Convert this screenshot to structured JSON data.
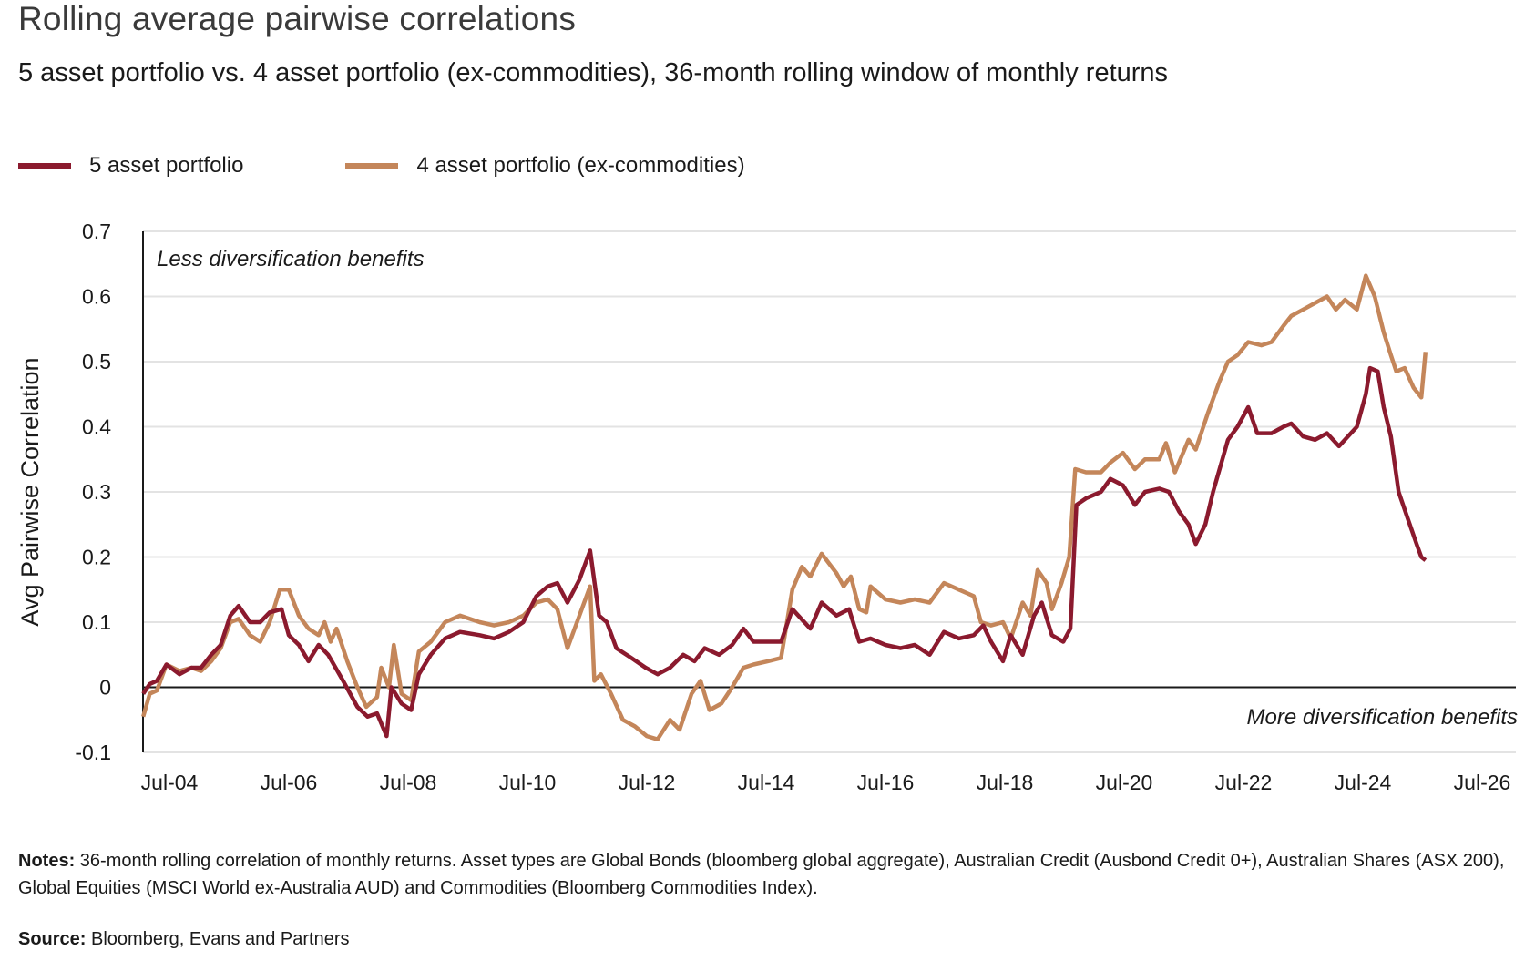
{
  "title": "Rolling average pairwise correlations",
  "subtitle": "5 asset portfolio vs. 4 asset portfolio (ex-commodities), 36-month rolling window of monthly returns",
  "notes_label": "Notes:",
  "notes_text": " 36-month rolling correlation of monthly returns. Asset types are Global Bonds (bloomberg global aggregate), Australian Credit (Ausbond Credit 0+), Australian Shares (ASX 200), Global Equities (MSCI World ex-Australia AUD) and Commodities (Bloomberg Commodities Index).",
  "source_label": "Source:",
  "source_text": " Bloomberg, Evans and Partners",
  "chart_data": {
    "type": "line",
    "title": "Rolling average pairwise correlations",
    "xlabel": "",
    "ylabel": "Avg Pairwise Correlation",
    "ylim": [
      -0.1,
      0.7
    ],
    "yticks": [
      -0.1,
      0,
      0.1,
      0.2,
      0.3,
      0.4,
      0.5,
      0.6,
      0.7
    ],
    "ytick_labels": [
      "-0.1",
      "0",
      "0.1",
      "0.2",
      "0.3",
      "0.4",
      "0.5",
      "0.6",
      "0.7"
    ],
    "xlim": [
      2004.06,
      2026.9
    ],
    "xticks": [
      2004.5,
      2006.5,
      2008.5,
      2010.5,
      2012.5,
      2014.5,
      2016.5,
      2018.5,
      2020.5,
      2022.5,
      2024.5,
      2026.5
    ],
    "xtick_labels": [
      "Jul-04",
      "Jul-06",
      "Jul-08",
      "Jul-10",
      "Jul-12",
      "Jul-14",
      "Jul-16",
      "Jul-18",
      "Jul-20",
      "Jul-22",
      "Jul-24",
      "Jul-26"
    ],
    "grid": "horizontal",
    "legend_position": "top-left",
    "annotations": [
      "Less diversification benefits",
      "More diversification benefits"
    ],
    "series": [
      {
        "name": "5 asset portfolio",
        "color": "#8b1a2e",
        "points": [
          [
            2004.06,
            -0.01
          ],
          [
            2004.17,
            0.005
          ],
          [
            2004.29,
            0.01
          ],
          [
            2004.45,
            0.035
          ],
          [
            2004.67,
            0.02
          ],
          [
            2004.87,
            0.03
          ],
          [
            2005.03,
            0.03
          ],
          [
            2005.2,
            0.05
          ],
          [
            2005.36,
            0.065
          ],
          [
            2005.52,
            0.11
          ],
          [
            2005.66,
            0.125
          ],
          [
            2005.85,
            0.1
          ],
          [
            2006.02,
            0.1
          ],
          [
            2006.18,
            0.115
          ],
          [
            2006.38,
            0.12
          ],
          [
            2006.5,
            0.08
          ],
          [
            2006.67,
            0.065
          ],
          [
            2006.83,
            0.04
          ],
          [
            2007.0,
            0.065
          ],
          [
            2007.16,
            0.05
          ],
          [
            2007.41,
            0.01
          ],
          [
            2007.65,
            -0.03
          ],
          [
            2007.82,
            -0.045
          ],
          [
            2007.98,
            -0.04
          ],
          [
            2008.14,
            -0.075
          ],
          [
            2008.22,
            0.0
          ],
          [
            2008.39,
            -0.025
          ],
          [
            2008.55,
            -0.035
          ],
          [
            2008.68,
            0.02
          ],
          [
            2008.88,
            0.05
          ],
          [
            2009.12,
            0.075
          ],
          [
            2009.37,
            0.085
          ],
          [
            2009.7,
            0.08
          ],
          [
            2009.94,
            0.075
          ],
          [
            2010.19,
            0.085
          ],
          [
            2010.43,
            0.1
          ],
          [
            2010.65,
            0.14
          ],
          [
            2010.84,
            0.155
          ],
          [
            2011.0,
            0.16
          ],
          [
            2011.17,
            0.13
          ],
          [
            2011.37,
            0.165
          ],
          [
            2011.55,
            0.21
          ],
          [
            2011.7,
            0.11
          ],
          [
            2011.83,
            0.1
          ],
          [
            2011.99,
            0.06
          ],
          [
            2012.24,
            0.045
          ],
          [
            2012.48,
            0.03
          ],
          [
            2012.68,
            0.02
          ],
          [
            2012.89,
            0.03
          ],
          [
            2013.11,
            0.05
          ],
          [
            2013.3,
            0.04
          ],
          [
            2013.47,
            0.06
          ],
          [
            2013.71,
            0.05
          ],
          [
            2013.93,
            0.065
          ],
          [
            2014.12,
            0.09
          ],
          [
            2014.29,
            0.07
          ],
          [
            2014.53,
            0.07
          ],
          [
            2014.75,
            0.07
          ],
          [
            2014.94,
            0.12
          ],
          [
            2015.24,
            0.09
          ],
          [
            2015.43,
            0.13
          ],
          [
            2015.68,
            0.11
          ],
          [
            2015.89,
            0.12
          ],
          [
            2016.06,
            0.07
          ],
          [
            2016.25,
            0.075
          ],
          [
            2016.5,
            0.065
          ],
          [
            2016.75,
            0.06
          ],
          [
            2016.99,
            0.065
          ],
          [
            2017.24,
            0.05
          ],
          [
            2017.48,
            0.085
          ],
          [
            2017.73,
            0.075
          ],
          [
            2017.98,
            0.08
          ],
          [
            2018.14,
            0.095
          ],
          [
            2018.27,
            0.07
          ],
          [
            2018.47,
            0.04
          ],
          [
            2018.6,
            0.08
          ],
          [
            2018.8,
            0.05
          ],
          [
            2018.99,
            0.11
          ],
          [
            2019.12,
            0.13
          ],
          [
            2019.29,
            0.08
          ],
          [
            2019.48,
            0.07
          ],
          [
            2019.6,
            0.09
          ],
          [
            2019.7,
            0.28
          ],
          [
            2019.86,
            0.29
          ],
          [
            2020.11,
            0.3
          ],
          [
            2020.27,
            0.32
          ],
          [
            2020.48,
            0.31
          ],
          [
            2020.68,
            0.28
          ],
          [
            2020.85,
            0.3
          ],
          [
            2021.09,
            0.305
          ],
          [
            2021.25,
            0.3
          ],
          [
            2021.42,
            0.27
          ],
          [
            2021.58,
            0.25
          ],
          [
            2021.7,
            0.22
          ],
          [
            2021.86,
            0.25
          ],
          [
            2021.99,
            0.3
          ],
          [
            2022.24,
            0.38
          ],
          [
            2022.4,
            0.4
          ],
          [
            2022.58,
            0.43
          ],
          [
            2022.73,
            0.39
          ],
          [
            2022.97,
            0.39
          ],
          [
            2023.17,
            0.4
          ],
          [
            2023.3,
            0.405
          ],
          [
            2023.5,
            0.385
          ],
          [
            2023.7,
            0.38
          ],
          [
            2023.9,
            0.39
          ],
          [
            2024.1,
            0.37
          ],
          [
            2024.3,
            0.39
          ],
          [
            2024.4,
            0.4
          ],
          [
            2024.55,
            0.45
          ],
          [
            2024.62,
            0.49
          ],
          [
            2024.75,
            0.485
          ],
          [
            2024.85,
            0.43
          ],
          [
            2024.97,
            0.385
          ],
          [
            2025.1,
            0.3
          ],
          [
            2025.25,
            0.26
          ],
          [
            2025.4,
            0.22
          ],
          [
            2025.48,
            0.2
          ],
          [
            2025.55,
            0.195
          ]
        ]
      },
      {
        "name": "4 asset portfolio (ex-commodities)",
        "color": "#c4865a",
        "points": [
          [
            2004.06,
            -0.045
          ],
          [
            2004.17,
            -0.01
          ],
          [
            2004.29,
            -0.005
          ],
          [
            2004.45,
            0.035
          ],
          [
            2004.67,
            0.025
          ],
          [
            2004.87,
            0.03
          ],
          [
            2005.03,
            0.025
          ],
          [
            2005.2,
            0.04
          ],
          [
            2005.36,
            0.06
          ],
          [
            2005.52,
            0.1
          ],
          [
            2005.66,
            0.105
          ],
          [
            2005.85,
            0.08
          ],
          [
            2006.02,
            0.07
          ],
          [
            2006.18,
            0.1
          ],
          [
            2006.35,
            0.15
          ],
          [
            2006.5,
            0.15
          ],
          [
            2006.67,
            0.11
          ],
          [
            2006.83,
            0.09
          ],
          [
            2007.0,
            0.08
          ],
          [
            2007.1,
            0.1
          ],
          [
            2007.2,
            0.07
          ],
          [
            2007.3,
            0.09
          ],
          [
            2007.48,
            0.04
          ],
          [
            2007.65,
            0.0
          ],
          [
            2007.8,
            -0.03
          ],
          [
            2007.98,
            -0.015
          ],
          [
            2008.05,
            0.03
          ],
          [
            2008.18,
            0.0
          ],
          [
            2008.26,
            0.065
          ],
          [
            2008.39,
            -0.01
          ],
          [
            2008.55,
            -0.02
          ],
          [
            2008.68,
            0.055
          ],
          [
            2008.88,
            0.07
          ],
          [
            2009.12,
            0.1
          ],
          [
            2009.37,
            0.11
          ],
          [
            2009.7,
            0.1
          ],
          [
            2009.94,
            0.095
          ],
          [
            2010.19,
            0.1
          ],
          [
            2010.43,
            0.11
          ],
          [
            2010.65,
            0.13
          ],
          [
            2010.84,
            0.135
          ],
          [
            2011.0,
            0.12
          ],
          [
            2011.17,
            0.06
          ],
          [
            2011.55,
            0.155
          ],
          [
            2011.62,
            0.01
          ],
          [
            2011.73,
            0.02
          ],
          [
            2011.9,
            -0.01
          ],
          [
            2012.1,
            -0.05
          ],
          [
            2012.3,
            -0.06
          ],
          [
            2012.5,
            -0.075
          ],
          [
            2012.68,
            -0.08
          ],
          [
            2012.89,
            -0.05
          ],
          [
            2013.05,
            -0.065
          ],
          [
            2013.25,
            -0.01
          ],
          [
            2013.4,
            0.01
          ],
          [
            2013.55,
            -0.035
          ],
          [
            2013.75,
            -0.025
          ],
          [
            2013.93,
            0.0
          ],
          [
            2014.12,
            0.03
          ],
          [
            2014.29,
            0.035
          ],
          [
            2014.53,
            0.04
          ],
          [
            2014.75,
            0.045
          ],
          [
            2014.94,
            0.15
          ],
          [
            2015.1,
            0.185
          ],
          [
            2015.24,
            0.17
          ],
          [
            2015.43,
            0.205
          ],
          [
            2015.68,
            0.175
          ],
          [
            2015.8,
            0.155
          ],
          [
            2015.92,
            0.17
          ],
          [
            2016.06,
            0.12
          ],
          [
            2016.18,
            0.115
          ],
          [
            2016.25,
            0.155
          ],
          [
            2016.5,
            0.135
          ],
          [
            2016.75,
            0.13
          ],
          [
            2016.99,
            0.135
          ],
          [
            2017.24,
            0.13
          ],
          [
            2017.48,
            0.16
          ],
          [
            2017.73,
            0.15
          ],
          [
            2017.98,
            0.14
          ],
          [
            2018.1,
            0.1
          ],
          [
            2018.27,
            0.095
          ],
          [
            2018.47,
            0.1
          ],
          [
            2018.6,
            0.075
          ],
          [
            2018.8,
            0.13
          ],
          [
            2018.93,
            0.11
          ],
          [
            2019.05,
            0.18
          ],
          [
            2019.2,
            0.16
          ],
          [
            2019.29,
            0.12
          ],
          [
            2019.45,
            0.16
          ],
          [
            2019.58,
            0.2
          ],
          [
            2019.68,
            0.335
          ],
          [
            2019.86,
            0.33
          ],
          [
            2020.11,
            0.33
          ],
          [
            2020.27,
            0.345
          ],
          [
            2020.48,
            0.36
          ],
          [
            2020.68,
            0.335
          ],
          [
            2020.85,
            0.35
          ],
          [
            2021.09,
            0.35
          ],
          [
            2021.2,
            0.375
          ],
          [
            2021.35,
            0.33
          ],
          [
            2021.58,
            0.38
          ],
          [
            2021.7,
            0.365
          ],
          [
            2021.9,
            0.42
          ],
          [
            2022.1,
            0.47
          ],
          [
            2022.24,
            0.5
          ],
          [
            2022.4,
            0.51
          ],
          [
            2022.58,
            0.53
          ],
          [
            2022.8,
            0.525
          ],
          [
            2022.97,
            0.53
          ],
          [
            2023.17,
            0.555
          ],
          [
            2023.3,
            0.57
          ],
          [
            2023.5,
            0.58
          ],
          [
            2023.7,
            0.59
          ],
          [
            2023.9,
            0.6
          ],
          [
            2024.05,
            0.58
          ],
          [
            2024.2,
            0.595
          ],
          [
            2024.4,
            0.58
          ],
          [
            2024.55,
            0.632
          ],
          [
            2024.7,
            0.6
          ],
          [
            2024.85,
            0.545
          ],
          [
            2024.97,
            0.51
          ],
          [
            2025.06,
            0.485
          ],
          [
            2025.2,
            0.49
          ],
          [
            2025.35,
            0.46
          ],
          [
            2025.48,
            0.445
          ],
          [
            2025.55,
            0.515
          ]
        ]
      }
    ]
  }
}
